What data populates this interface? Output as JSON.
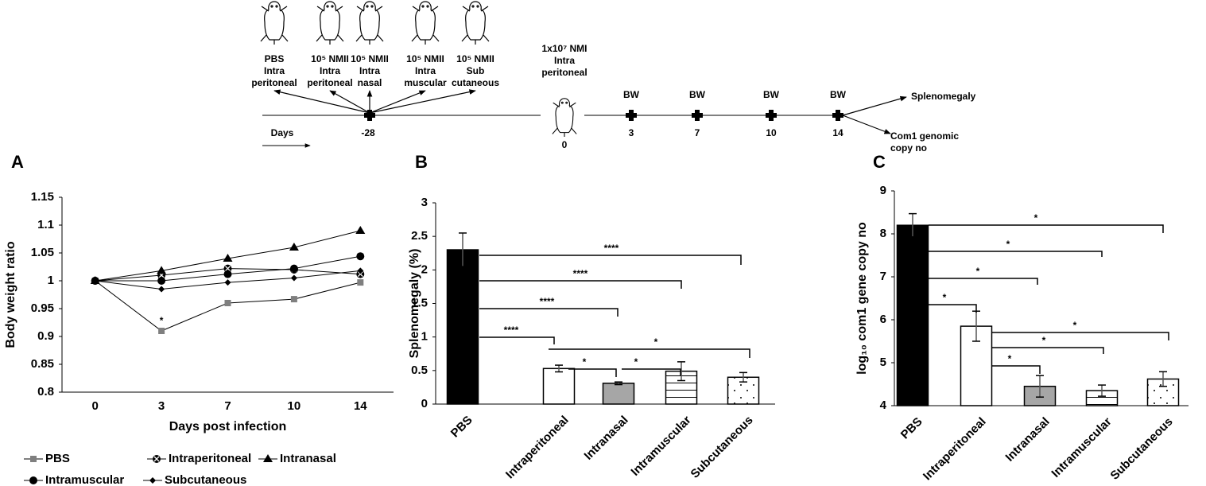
{
  "timeline": {
    "groups": [
      {
        "lines": [
          "PBS",
          "Intra",
          "peritoneal"
        ]
      },
      {
        "lines": [
          "10⁵ NMII",
          "Intra",
          "peritoneal"
        ]
      },
      {
        "lines": [
          "10⁵ NMII",
          "Intra",
          "nasal"
        ]
      },
      {
        "lines": [
          "10⁵ NMII",
          "Intra",
          "muscular"
        ]
      },
      {
        "lines": [
          "10⁵ NMII",
          "Sub",
          "cutaneous"
        ]
      }
    ],
    "challenge": [
      "1x10⁷ NMI",
      "Intra",
      "peritoneal"
    ],
    "days_label": "Days",
    "day_ticks": [
      "-28",
      "0",
      "3",
      "7",
      "10",
      "14"
    ],
    "bw": [
      "BW",
      "BW",
      "BW",
      "BW"
    ],
    "outcomes": [
      {
        "lines": [
          "Splenomegaly"
        ]
      },
      {
        "lines": [
          "Com1 genomic",
          "copy no"
        ]
      }
    ]
  },
  "chart_data": [
    {
      "type": "line",
      "panel": "A",
      "ylabel": "Body weight ratio",
      "xlabel": "Days post infection",
      "categories": [
        "0",
        "3",
        "7",
        "10",
        "14"
      ],
      "series": [
        {
          "name": "PBS",
          "color": "#7f7f7f",
          "marker": "square",
          "values": [
            1,
            0.91,
            0.96,
            0.967,
            0.997
          ]
        },
        {
          "name": "Intraperitoneal",
          "color": "#000000",
          "marker": "x",
          "values": [
            1,
            1.01,
            1.022,
            1.02,
            1.012
          ]
        },
        {
          "name": "Intranasal",
          "color": "#000000",
          "marker": "triangle",
          "values": [
            1,
            1.018,
            1.04,
            1.06,
            1.09
          ]
        },
        {
          "name": "Intramuscular",
          "color": "#000000",
          "marker": "circle",
          "values": [
            1,
            1.0,
            1.012,
            1.022,
            1.044
          ]
        },
        {
          "name": "Subcutaneous",
          "color": "#000000",
          "marker": "diamond",
          "values": [
            1,
            0.985,
            0.997,
            1.005,
            1.018
          ]
        }
      ],
      "ylim": [
        0.8,
        1.15
      ],
      "yticks": [
        0.8,
        0.85,
        0.9,
        0.95,
        1,
        1.05,
        1.1,
        1.15
      ],
      "annotations": [
        "*"
      ],
      "legend": "bottom"
    },
    {
      "type": "bar",
      "panel": "B",
      "ylabel": "Splenomegaly (%)",
      "categories": [
        "PBS",
        "Intraperitoneal",
        "Intranasal",
        "Intramuscular",
        "Subcutaneous"
      ],
      "values": [
        2.3,
        0.53,
        0.31,
        0.49,
        0.4
      ],
      "errors": [
        0.25,
        0.05,
        0.02,
        0.14,
        0.07
      ],
      "colors": [
        "#000000",
        "#ffffff",
        "#a6a6a6",
        "#ffffff",
        "#ffffff"
      ],
      "patterns": [
        "solid",
        "solid",
        "solid",
        "hlines",
        "dots"
      ],
      "ylim": [
        0,
        3
      ],
      "yticks": [
        0,
        0.5,
        1,
        1.5,
        2,
        2.5,
        3
      ],
      "annotations": [
        "****",
        "****",
        "****",
        "****",
        "*",
        "*",
        "*"
      ]
    },
    {
      "type": "bar",
      "panel": "C",
      "ylabel": "log₁₀ com1 gene  copy no",
      "categories": [
        "PBS",
        "Intraperitoneal",
        "Intranasal",
        "Intramuscular",
        "Subcutaneous"
      ],
      "values": [
        8.2,
        5.85,
        4.45,
        4.35,
        4.62
      ],
      "errors": [
        0.27,
        0.35,
        0.25,
        0.13,
        0.17
      ],
      "colors": [
        "#000000",
        "#ffffff",
        "#a6a6a6",
        "#ffffff",
        "#ffffff"
      ],
      "patterns": [
        "solid",
        "solid",
        "solid",
        "hlines",
        "dots"
      ],
      "ylim": [
        4,
        9
      ],
      "yticks": [
        4,
        5,
        6,
        7,
        8,
        9
      ],
      "annotations": [
        "*",
        "*",
        "*",
        "*",
        "*",
        "*",
        "*"
      ]
    }
  ]
}
